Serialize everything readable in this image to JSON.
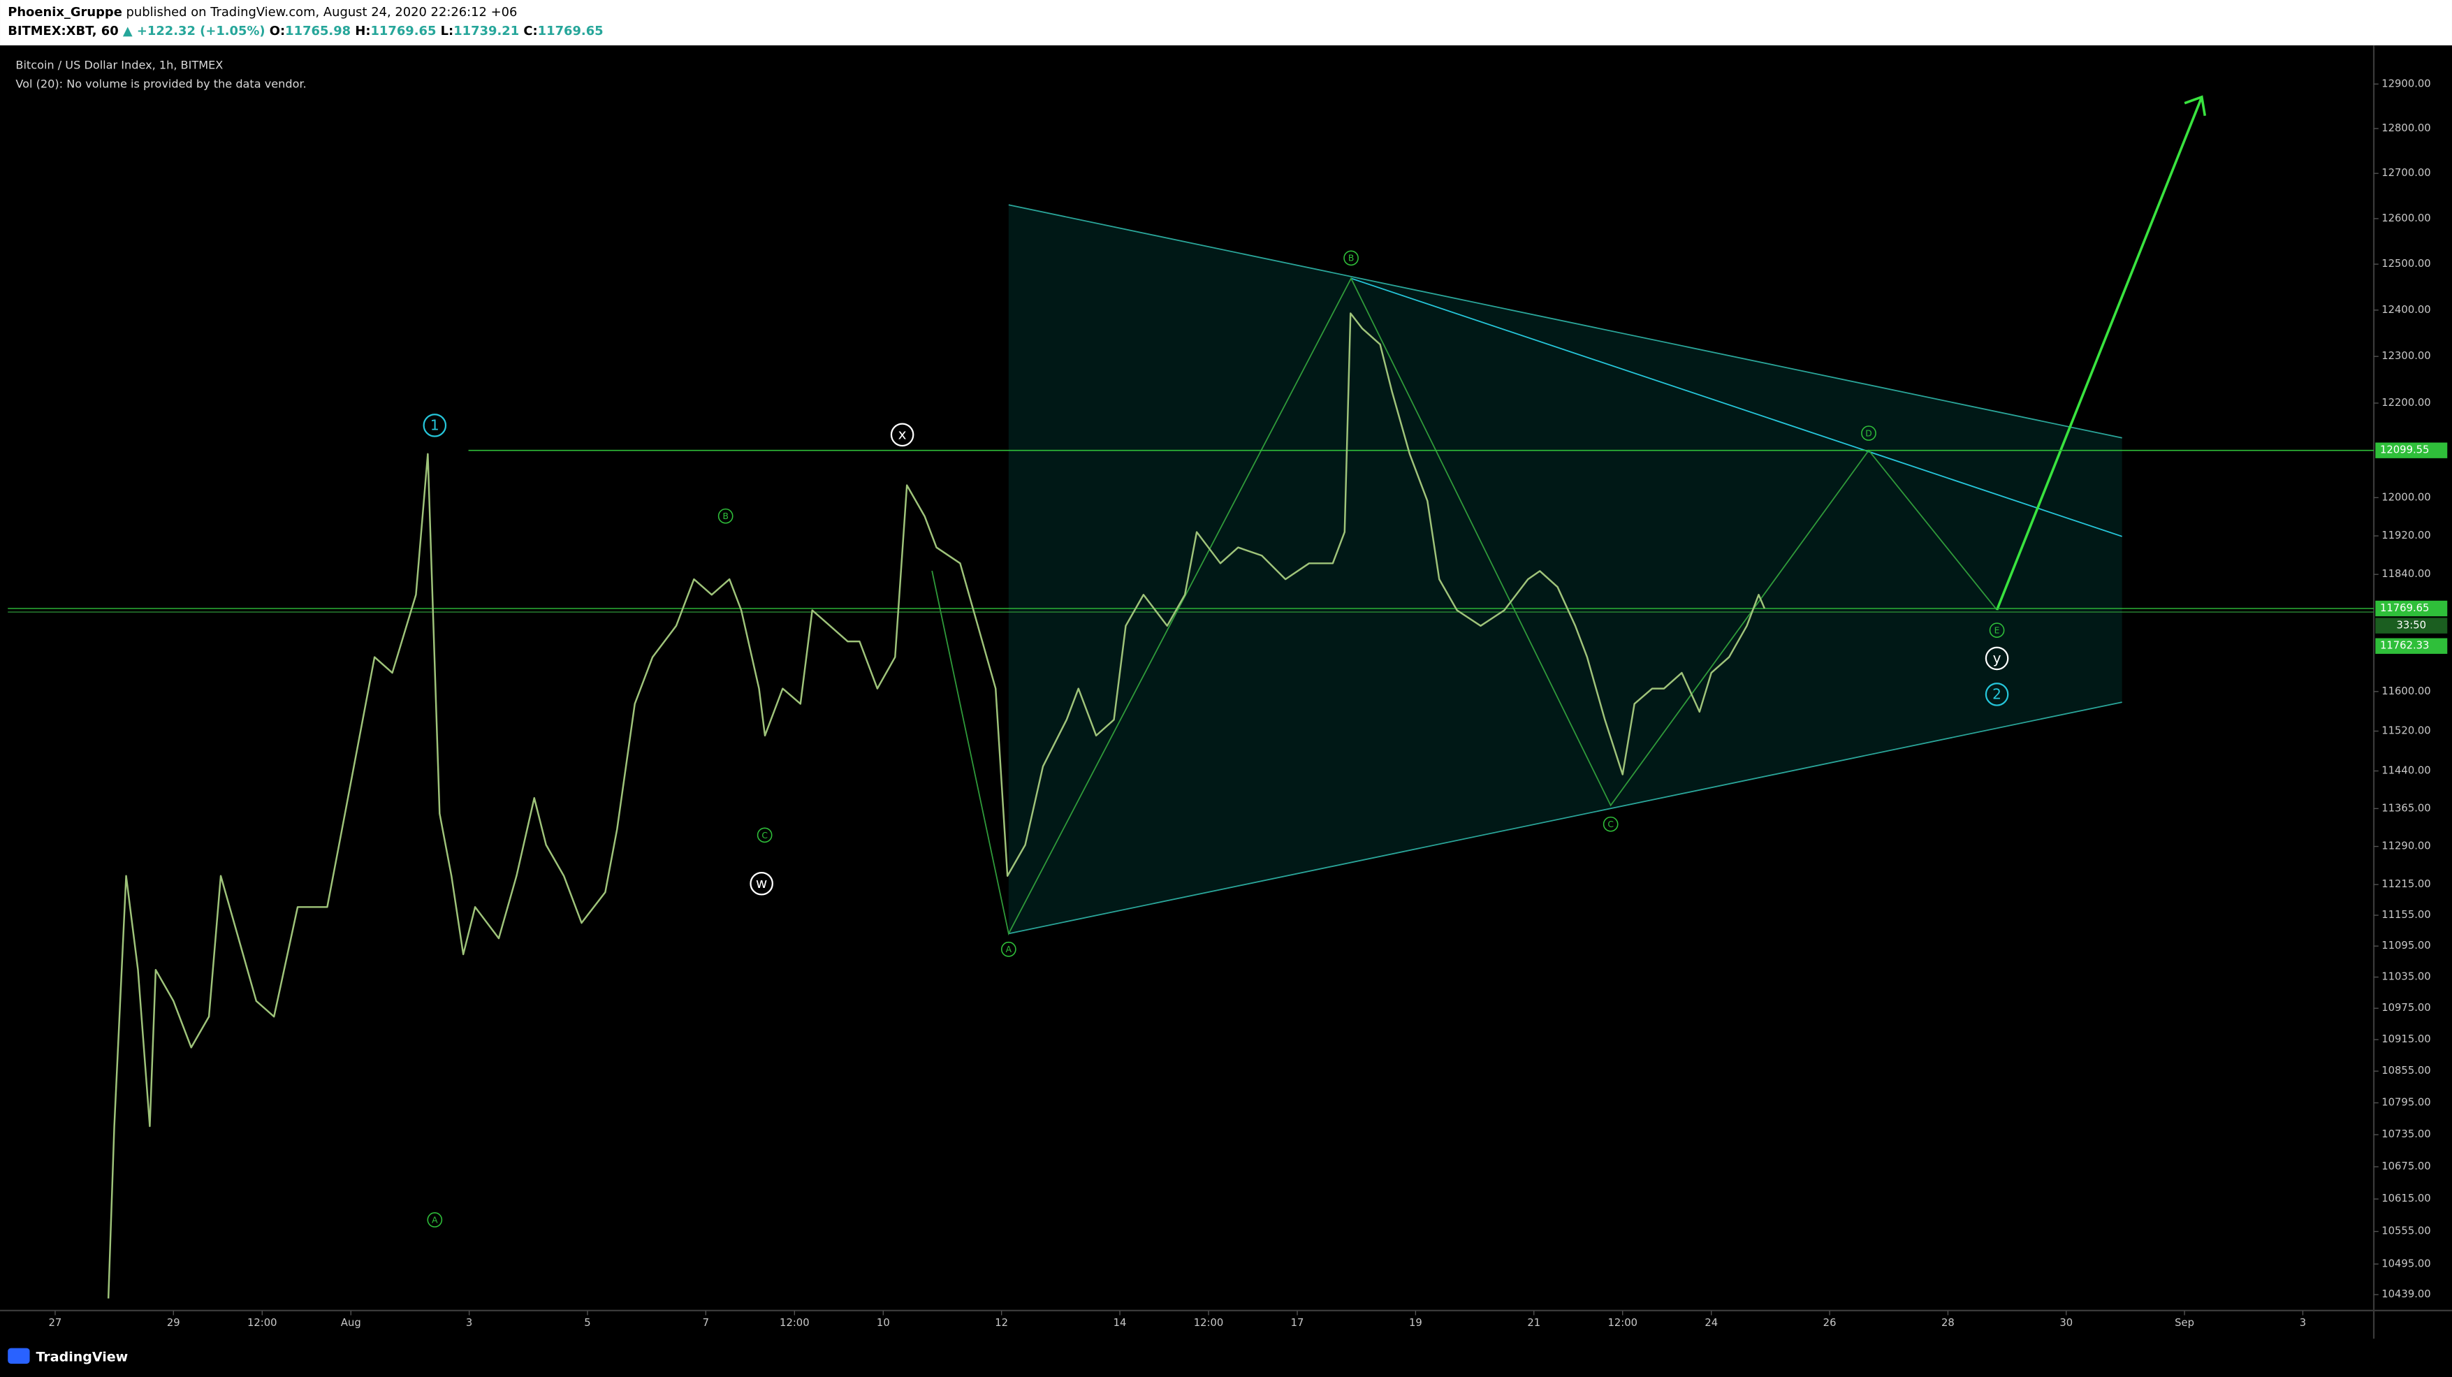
{
  "header": {
    "publisher": "Phoenix_Gruppe",
    "published": " published on TradingView.com, August 24, 2020 22:26:12 +06",
    "symbol": "BITMEX:XBT, 60 ",
    "change": "▲ +122.32 (+1.05%) ",
    "ohlc": [
      {
        "label": "O:",
        "value": 11765.98
      },
      {
        "label": "H:",
        "value": 11769.65
      },
      {
        "label": "L:",
        "value": 11739.21
      },
      {
        "label": "C:",
        "value": 11769.65
      }
    ]
  },
  "legend": {
    "title": "Bitcoin / US Dollar Index, 1h, BITMEX",
    "volume": "Vol (20): No volume is provided by the data vendor."
  },
  "footer": {
    "brand": "TradingView"
  },
  "chart_data": {
    "type": "line",
    "color": "#9fc47a",
    "log_y": true,
    "grid": false,
    "xlim": [
      -0.8,
      39.2
    ],
    "ylim": [
      10410,
      12984
    ],
    "x": [
      0.9,
      1.0,
      1.2,
      1.4,
      1.6,
      1.7,
      2.0,
      2.3,
      2.6,
      2.8,
      3.1,
      3.4,
      3.7,
      4.1,
      4.6,
      4.9,
      5.4,
      5.7,
      6.1,
      6.3,
      6.5,
      6.7,
      6.9,
      7.1,
      7.5,
      7.8,
      8.1,
      8.3,
      8.6,
      8.9,
      9.3,
      9.5,
      9.8,
      10.1,
      10.5,
      10.8,
      11.1,
      11.4,
      11.6,
      11.9,
      12.0,
      12.3,
      12.6,
      12.8,
      13.1,
      13.4,
      13.6,
      13.9,
      14.2,
      14.4,
      14.7,
      14.9,
      15.3,
      15.6,
      15.9,
      16.1,
      16.4,
      16.7,
      17.1,
      17.3,
      17.6,
      17.9,
      18.1,
      18.4,
      18.8,
      19.1,
      19.3,
      19.7,
      20.0,
      20.4,
      20.8,
      21.2,
      21.6,
      21.8,
      21.9,
      22.1,
      22.4,
      22.6,
      22.9,
      23.2,
      23.4,
      23.7,
      24.1,
      24.5,
      24.9,
      25.1,
      25.4,
      25.7,
      25.9,
      26.2,
      26.5,
      26.7,
      27.0,
      27.2,
      27.5,
      27.8,
      28.0,
      28.3,
      28.6,
      28.8,
      28.9
    ],
    "values": [
      10432,
      10751,
      11232,
      11049,
      10751,
      11049,
      10989,
      10900,
      10959,
      11232,
      11110,
      10989,
      10959,
      11171,
      11171,
      11355,
      11670,
      11638,
      11798,
      12092,
      11355,
      11232,
      11079,
      11171,
      11110,
      11232,
      11386,
      11293,
      11232,
      11140,
      11200,
      11324,
      11575,
      11670,
      11734,
      11830,
      11798,
      11830,
      11766,
      11606,
      11511,
      11606,
      11575,
      11766,
      11734,
      11702,
      11702,
      11606,
      11670,
      12026,
      11961,
      11896,
      11863,
      11734,
      11606,
      11232,
      11293,
      11449,
      11543,
      11606,
      11511,
      11543,
      11734,
      11798,
      11734,
      11798,
      11928,
      11863,
      11896,
      11879,
      11830,
      11863,
      11863,
      11928,
      12393,
      12360,
      12326,
      12225,
      12092,
      11993,
      11830,
      11766,
      11734,
      11766,
      11830,
      11847,
      11814,
      11734,
      11670,
      11543,
      11433,
      11575,
      11606,
      11606,
      11638,
      11559,
      11638,
      11670,
      11734,
      11798,
      11769.65
    ],
    "xticks": [
      {
        "value": 0,
        "label": "27"
      },
      {
        "value": 2,
        "label": "29"
      },
      {
        "value": 3.5,
        "label": "12:00"
      },
      {
        "value": 5,
        "label": "Aug"
      },
      {
        "value": 7,
        "label": "3"
      },
      {
        "value": 9,
        "label": "5"
      },
      {
        "value": 11,
        "label": "7"
      },
      {
        "value": 12.5,
        "label": "12:00"
      },
      {
        "value": 14,
        "label": "10"
      },
      {
        "value": 16,
        "label": "12"
      },
      {
        "value": 18,
        "label": "14"
      },
      {
        "value": 19.5,
        "label": "12:00"
      },
      {
        "value": 21,
        "label": "17"
      },
      {
        "value": 23,
        "label": "19"
      },
      {
        "value": 25,
        "label": "21"
      },
      {
        "value": 26.5,
        "label": "12:00"
      },
      {
        "value": 28,
        "label": "24"
      },
      {
        "value": 30,
        "label": "26"
      },
      {
        "value": 32,
        "label": "28"
      },
      {
        "value": 34,
        "label": "30"
      },
      {
        "value": 36,
        "label": "Sep"
      },
      {
        "value": 38,
        "label": "3"
      }
    ],
    "yticks": [
      {
        "value": 12900,
        "label": "12900.00"
      },
      {
        "value": 12800,
        "label": "12800.00"
      },
      {
        "value": 12700,
        "label": "12700.00"
      },
      {
        "value": 12600,
        "label": "12600.00"
      },
      {
        "value": 12500,
        "label": "12500.00"
      },
      {
        "value": 12400,
        "label": "12400.00"
      },
      {
        "value": 12300,
        "label": "12300.00"
      },
      {
        "value": 12200,
        "label": "12200.00"
      },
      {
        "value": 12000,
        "label": "12000.00"
      },
      {
        "value": 11920,
        "label": "11920.00"
      },
      {
        "value": 11840,
        "label": "11840.00"
      },
      {
        "value": 11600,
        "label": "11600.00"
      },
      {
        "value": 11520,
        "label": "11520.00"
      },
      {
        "value": 11440,
        "label": "11440.00"
      },
      {
        "value": 11365,
        "label": "11365.00"
      },
      {
        "value": 11290,
        "label": "11290.00"
      },
      {
        "value": 11215,
        "label": "11215.00"
      },
      {
        "value": 11155,
        "label": "11155.00"
      },
      {
        "value": 11095,
        "label": "11095.00"
      },
      {
        "value": 11035,
        "label": "11035.00"
      },
      {
        "value": 10975,
        "label": "10975.00"
      },
      {
        "value": 10915,
        "label": "10915.00"
      },
      {
        "value": 10855,
        "label": "10855.00"
      },
      {
        "value": 10795,
        "label": "10795.00"
      },
      {
        "value": 10735,
        "label": "10735.00"
      },
      {
        "value": 10675,
        "label": "10675.00"
      },
      {
        "value": 10615,
        "label": "10615.00"
      },
      {
        "value": 10555,
        "label": "10555.00"
      },
      {
        "value": 10495,
        "label": "10495.00"
      },
      {
        "value": 10439,
        "label": "10439.00"
      }
    ],
    "price_tags": [
      12099.55,
      11769.65,
      11762.33
    ],
    "countdown": "33:50",
    "wave_labels": [
      {
        "text": "1",
        "color": "#26c6da"
      },
      {
        "text": "A",
        "color": "#2fbf3a"
      },
      {
        "text": "B",
        "color": "#2fbf3a"
      },
      {
        "text": "C",
        "color": "#2fbf3a"
      },
      {
        "text": "w",
        "color": "#ffffff"
      },
      {
        "text": "x",
        "color": "#ffffff"
      },
      {
        "text": "A",
        "color": "#2fbf3a"
      },
      {
        "text": "B",
        "color": "#2fbf3a"
      },
      {
        "text": "C",
        "color": "#2fbf3a"
      },
      {
        "text": "D",
        "color": "#2fbf3a"
      },
      {
        "text": "E",
        "color": "#2fbf3a"
      },
      {
        "text": "y",
        "color": "#ffffff"
      },
      {
        "text": "2",
        "color": "#26c6da"
      }
    ]
  }
}
